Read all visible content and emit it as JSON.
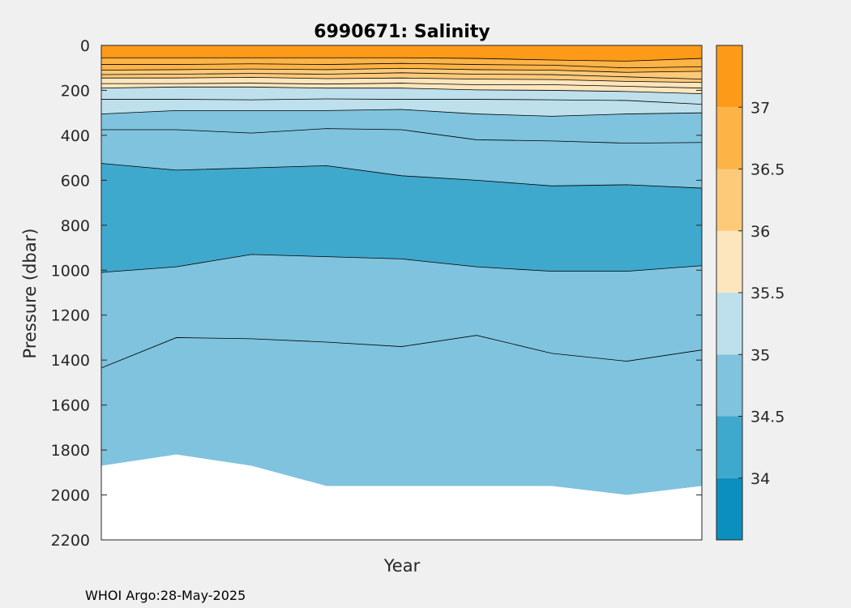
{
  "chart_data": {
    "type": "contour",
    "title": "6990671:  Salinity",
    "xlabel": "Year",
    "ylabel": "Pressure (dbar)",
    "ylim": [
      0,
      2200
    ],
    "y_reversed": true,
    "yticks": [
      0,
      200,
      400,
      600,
      800,
      1000,
      1200,
      1400,
      1600,
      1800,
      2000,
      2200
    ],
    "x_tick_labels": [],
    "colorbar": {
      "levels": [
        33.5,
        34,
        34.5,
        35,
        35.5,
        36,
        36.5,
        37,
        37.5
      ],
      "tick_labels": [
        "34",
        "34.5",
        "35",
        "35.5",
        "36",
        "36.5",
        "37"
      ],
      "colors": [
        "#0a8fbf",
        "#3fa8cd",
        "#7fc3de",
        "#bde0ec",
        "#fde6bd",
        "#fdca7a",
        "#fdb346",
        "#fd9b18"
      ]
    },
    "x_profiles": [
      0,
      0.125,
      0.25,
      0.375,
      0.5,
      0.625,
      0.75,
      0.875,
      1
    ],
    "bottom_pressure": [
      1870,
      1820,
      1870,
      1960,
      1960,
      1960,
      1960,
      2000,
      1960
    ],
    "contours": [
      {
        "level": 37.0,
        "pressure": [
          55,
          55,
          55,
          55,
          55,
          58,
          65,
          70,
          58
        ]
      },
      {
        "level": 36.75,
        "pressure": [
          85,
          85,
          82,
          85,
          80,
          85,
          88,
          100,
          95
        ]
      },
      {
        "level": 36.5,
        "pressure": [
          110,
          108,
          105,
          108,
          102,
          108,
          110,
          120,
          115
        ]
      },
      {
        "level": 36.25,
        "pressure": [
          130,
          128,
          125,
          128,
          122,
          128,
          130,
          140,
          150
        ]
      },
      {
        "level": 36.0,
        "pressure": [
          145,
          145,
          142,
          148,
          145,
          150,
          152,
          160,
          165
        ]
      },
      {
        "level": 35.75,
        "pressure": [
          170,
          170,
          168,
          172,
          168,
          175,
          175,
          182,
          190
        ]
      },
      {
        "level": 35.5,
        "pressure": [
          190,
          185,
          185,
          190,
          190,
          198,
          200,
          205,
          215
        ]
      },
      {
        "level": 35.25,
        "pressure": [
          240,
          240,
          242,
          238,
          240,
          240,
          242,
          245,
          262
        ]
      },
      {
        "level": 35.0,
        "pressure": [
          305,
          290,
          290,
          290,
          285,
          305,
          315,
          305,
          300
        ]
      },
      {
        "level": 34.75,
        "pressure": [
          375,
          375,
          390,
          370,
          375,
          420,
          425,
          435,
          432
        ]
      },
      {
        "level": 34.5,
        "pressure": [
          525,
          555,
          545,
          535,
          580,
          600,
          625,
          620,
          635
        ]
      },
      {
        "level": 34.25,
        "pressure": [
          1010,
          985,
          930,
          940,
          950,
          985,
          1005,
          1005,
          980
        ]
      },
      {
        "level": 34.75,
        "pressure": [
          1435,
          1300,
          1305,
          1320,
          1340,
          1290,
          1370,
          1405,
          1355
        ]
      }
    ]
  },
  "footer": "WHOI Argo:28-May-2025"
}
